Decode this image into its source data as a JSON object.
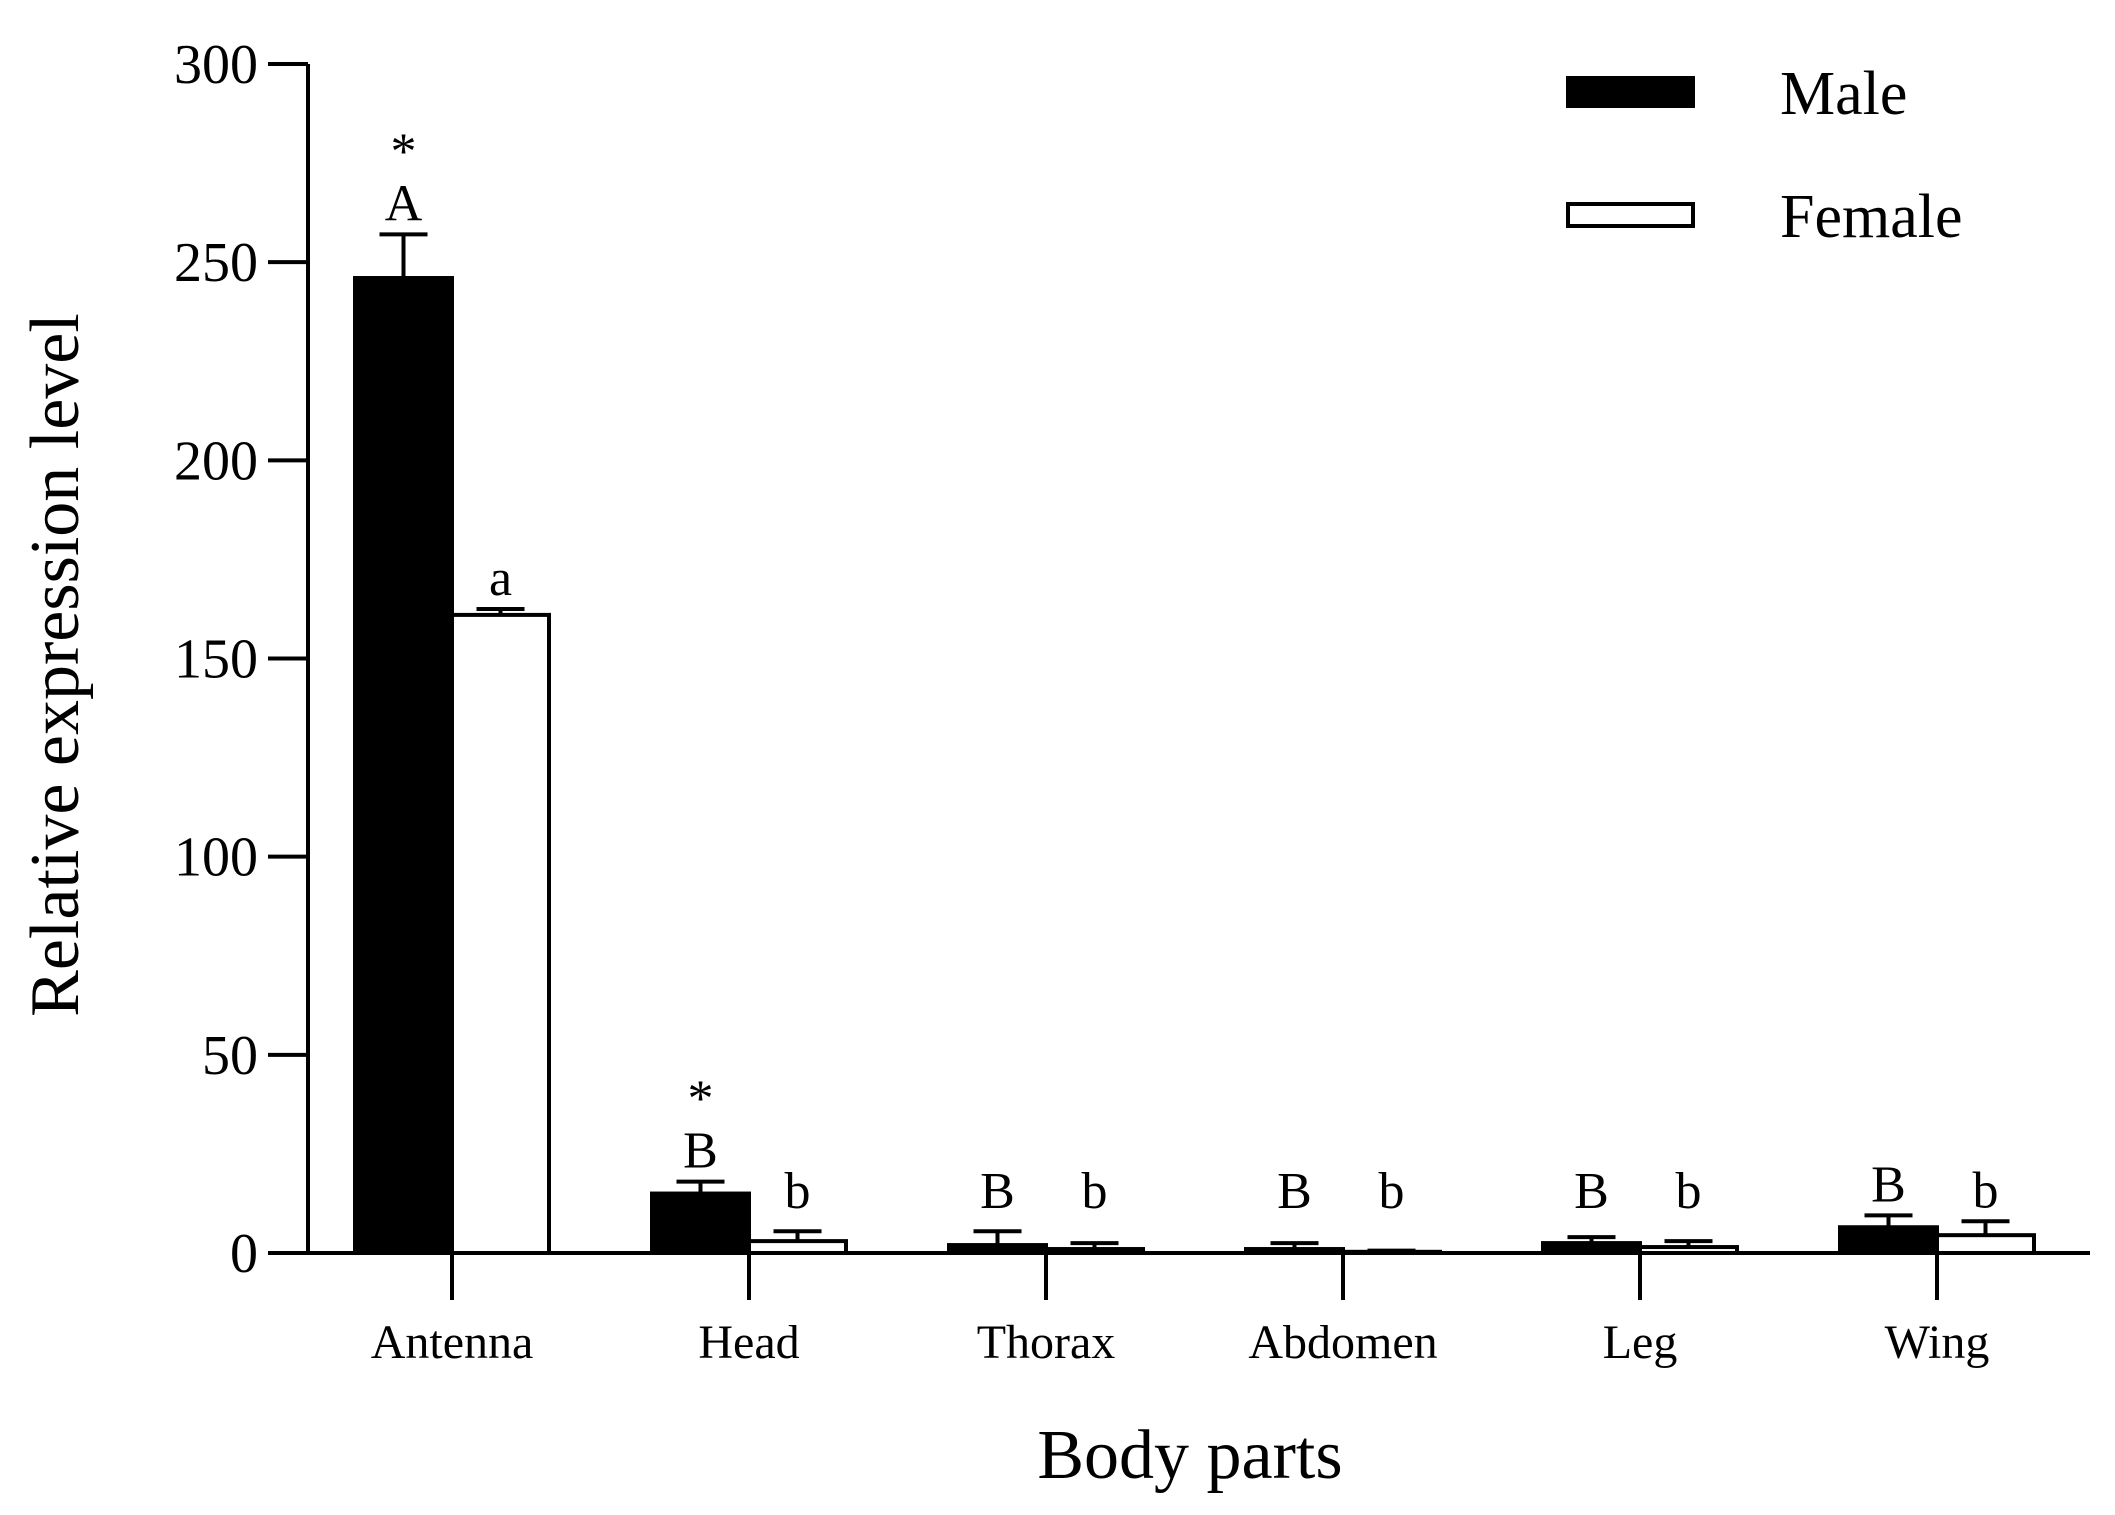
{
  "chart_data": {
    "type": "bar",
    "title": "",
    "xlabel": "Body parts",
    "ylabel": "Relative expression level",
    "ylim": [
      0,
      300
    ],
    "yticks": [
      0,
      50,
      100,
      150,
      200,
      250,
      300
    ],
    "categories": [
      "Antenna",
      "Head",
      "Thorax",
      "Abdomen",
      "Leg",
      "Wing"
    ],
    "legend_position": "top-right",
    "grid": false,
    "series": [
      {
        "name": "Male",
        "fill": "#000000",
        "values": [
          246,
          15,
          2,
          1,
          2.5,
          6.5
        ],
        "errors": [
          11,
          3,
          3.5,
          1.5,
          1.5,
          3
        ],
        "letters": [
          "A",
          "B",
          "B",
          "B",
          "B",
          "B"
        ],
        "stars": [
          "*",
          "*",
          "",
          "",
          "",
          ""
        ]
      },
      {
        "name": "Female",
        "fill": "#ffffff",
        "values": [
          161,
          3,
          1,
          0.3,
          1.5,
          4.5
        ],
        "errors": [
          1.5,
          2.5,
          1.5,
          0.3,
          1.5,
          3.5
        ],
        "letters": [
          "a",
          "b",
          "b",
          "b",
          "b",
          "b"
        ],
        "stars": [
          "",
          "",
          "",
          "",
          "",
          ""
        ]
      }
    ]
  }
}
